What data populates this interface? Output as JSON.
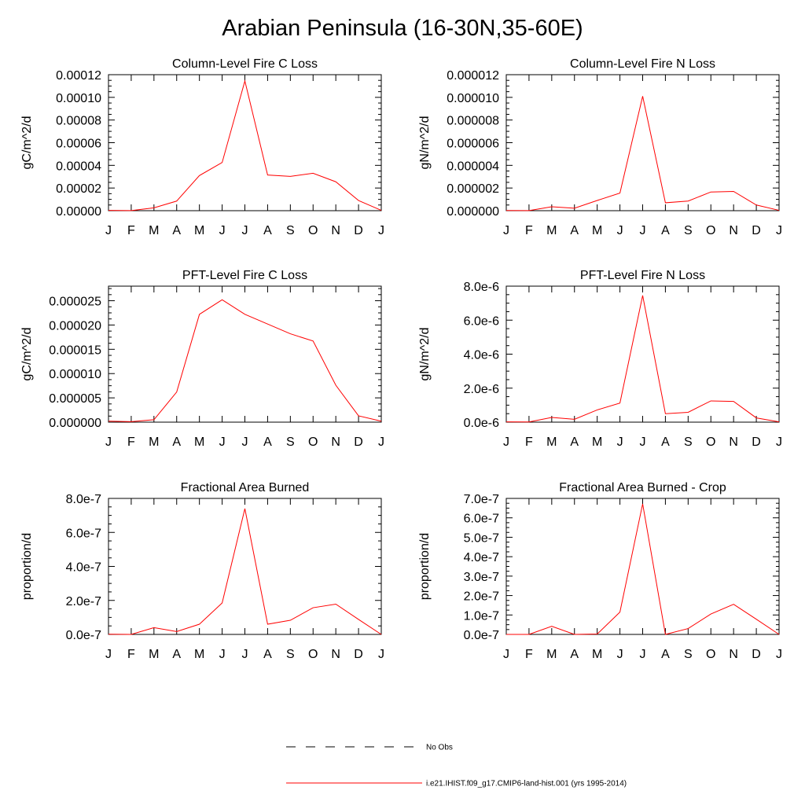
{
  "page": {
    "title": "Arabian Peninsula (16-30N,35-60E)"
  },
  "chart_data": [
    {
      "type": "line",
      "title": "Column-Level Fire C Loss",
      "ylabel": "gC/m^2/d",
      "categories": [
        "J",
        "F",
        "M",
        "A",
        "M",
        "J",
        "J",
        "A",
        "S",
        "O",
        "N",
        "D",
        "J"
      ],
      "ylim": [
        0,
        0.00012
      ],
      "yticks": [
        "0.00000",
        "0.00002",
        "0.00004",
        "0.00006",
        "0.00008",
        "0.00010",
        "0.00012"
      ],
      "series": [
        {
          "values": [
            3e-07,
            1e-07,
            2.5e-06,
            8.5e-06,
            3.1e-05,
            4.25e-05,
            0.0001145,
            3.15e-05,
            3.03e-05,
            3.3e-05,
            2.55e-05,
            9e-06,
            3e-07
          ]
        }
      ]
    },
    {
      "type": "line",
      "title": "Column-Level Fire N Loss",
      "ylabel": "gN/m^2/d",
      "categories": [
        "J",
        "F",
        "M",
        "A",
        "M",
        "J",
        "J",
        "A",
        "S",
        "O",
        "N",
        "D",
        "J"
      ],
      "ylim": [
        0,
        1.2e-05
      ],
      "yticks": [
        "0.000000",
        "0.000002",
        "0.000004",
        "0.000006",
        "0.000008",
        "0.000010",
        "0.000012"
      ],
      "series": [
        {
          "values": [
            2e-08,
            1e-08,
            3.5e-07,
            2.2e-07,
            9e-07,
            1.55e-06,
            1.01e-05,
            7e-07,
            8.5e-07,
            1.65e-06,
            1.7e-06,
            5e-07,
            3e-08
          ]
        }
      ]
    },
    {
      "type": "line",
      "title": "PFT-Level Fire C Loss",
      "ylabel": "gC/m^2/d",
      "categories": [
        "J",
        "F",
        "M",
        "A",
        "M",
        "J",
        "J",
        "A",
        "S",
        "O",
        "N",
        "D",
        "J"
      ],
      "ylim": [
        0,
        2.8e-05
      ],
      "yticks": [
        "0.000000",
        "0.000005",
        "0.000010",
        "0.000015",
        "0.000020",
        "0.000025"
      ],
      "series": [
        {
          "values": [
            2e-07,
            1e-07,
            5e-07,
            6.2e-06,
            2.22e-05,
            2.52e-05,
            2.22e-05,
            2.02e-05,
            1.82e-05,
            1.67e-05,
            7.6e-06,
            1.3e-06,
            2e-07
          ]
        }
      ]
    },
    {
      "type": "line",
      "title": "PFT-Level Fire N Loss",
      "ylabel": "gN/m^2/d",
      "categories": [
        "J",
        "F",
        "M",
        "A",
        "M",
        "J",
        "J",
        "A",
        "S",
        "O",
        "N",
        "D",
        "J"
      ],
      "ylim": [
        0,
        8e-06
      ],
      "yticks": [
        "0.0e-6",
        "2.0e-6",
        "4.0e-6",
        "6.0e-6",
        "8.0e-6"
      ],
      "series": [
        {
          "values": [
            2e-08,
            1e-08,
            2.8e-07,
            1.7e-07,
            7.2e-07,
            1.12e-06,
            7.45e-06,
            5e-07,
            5.8e-07,
            1.25e-06,
            1.22e-06,
            2.5e-07,
            2e-08
          ]
        }
      ]
    },
    {
      "type": "line",
      "title": "Fractional Area Burned",
      "ylabel": "proportion/d",
      "categories": [
        "J",
        "F",
        "M",
        "A",
        "M",
        "J",
        "J",
        "A",
        "S",
        "O",
        "N",
        "D",
        "J"
      ],
      "ylim": [
        0,
        8e-07
      ],
      "yticks": [
        "0.0e-7",
        "2.0e-7",
        "4.0e-7",
        "6.0e-7",
        "8.0e-7"
      ],
      "series": [
        {
          "values": [
            1e-09,
            0.0,
            4e-08,
            1.7e-08,
            6e-08,
            1.85e-07,
            7.4e-07,
            6e-08,
            8.3e-08,
            1.57e-07,
            1.78e-07,
            8.8e-08,
            0.0
          ]
        }
      ]
    },
    {
      "type": "line",
      "title": "Fractional Area Burned - Crop",
      "ylabel": "proportion/d",
      "categories": [
        "J",
        "F",
        "M",
        "A",
        "M",
        "J",
        "J",
        "A",
        "S",
        "O",
        "N",
        "D",
        "J"
      ],
      "ylim": [
        0,
        7e-07
      ],
      "yticks": [
        "0.0e-7",
        "1.0e-7",
        "2.0e-7",
        "3.0e-7",
        "4.0e-7",
        "5.0e-7",
        "6.0e-7",
        "7.0e-7"
      ],
      "series": [
        {
          "values": [
            0.0,
            0.0,
            4.2e-08,
            0.0,
            2e-09,
            1.15e-07,
            6.72e-07,
            0.0,
            3e-08,
            1.05e-07,
            1.55e-07,
            7.8e-08,
            0.0
          ]
        }
      ]
    }
  ],
  "legend": [
    {
      "label": "No Obs",
      "color": "#000000",
      "style": "dashed"
    },
    {
      "label": "i.e21.IHIST.f09_g17.CMIP6-land-hist.001 (yrs 1995-2014)",
      "color": "#ff0000",
      "style": "solid"
    }
  ]
}
